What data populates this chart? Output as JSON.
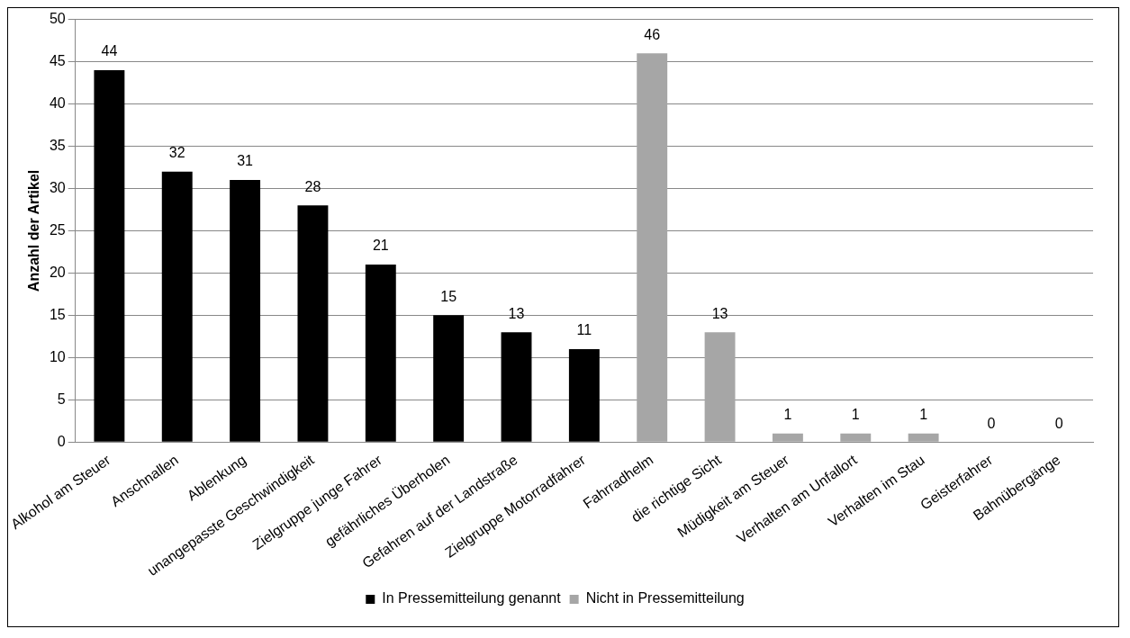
{
  "chart_data": {
    "type": "bar",
    "ylabel": "Anzahl der Artikel",
    "categories": [
      "Alkohol am Steuer",
      "Anschnallen",
      "Ablenkung",
      "unangepasste Geschwindigkeit",
      "Zielgruppe junge Fahrer",
      "gefährliches Überholen",
      "Gefahren auf der Landstraße",
      "Zielgruppe Motorradfahrer",
      "Fahrradhelm",
      "die richtige Sicht",
      "Müdigkeit am Steuer",
      "Verhalten am Unfallort",
      "Verhalten im Stau",
      "Geisterfahrer",
      "Bahnübergänge"
    ],
    "series": [
      {
        "name": "In Pressemitteilung genannt",
        "color": "#000000",
        "values": [
          44,
          32,
          31,
          28,
          21,
          15,
          13,
          11,
          null,
          null,
          null,
          null,
          null,
          null,
          null
        ]
      },
      {
        "name": "Nicht in Pressemitteilung",
        "color": "#a6a6a6",
        "values": [
          null,
          null,
          null,
          null,
          null,
          null,
          null,
          null,
          46,
          13,
          1,
          1,
          1,
          0,
          0
        ]
      }
    ],
    "ylim": [
      0,
      50
    ],
    "yticks": [
      0,
      5,
      10,
      15,
      20,
      25,
      30,
      35,
      40,
      45,
      50
    ],
    "grid": "y",
    "legend": "bottom",
    "data_labels": true
  }
}
